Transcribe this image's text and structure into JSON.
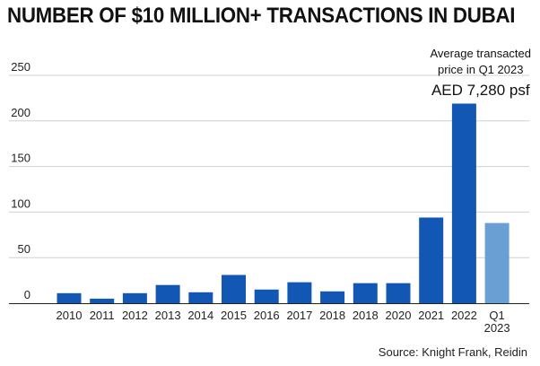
{
  "chart_data": {
    "type": "bar",
    "title": "NUMBER OF $10 MILLION+ TRANSACTIONS IN DUBAI",
    "categories": [
      "2010",
      "2011",
      "2012",
      "2013",
      "2014",
      "2015",
      "2016",
      "2017",
      "2018",
      "2018",
      "2020",
      "2021",
      "2022",
      "Q1\n2023"
    ],
    "values": [
      11,
      5,
      11,
      20,
      12,
      31,
      15,
      23,
      13,
      22,
      22,
      94,
      219,
      88
    ],
    "bar_colors": [
      "#1257b4",
      "#1257b4",
      "#1257b4",
      "#1257b4",
      "#1257b4",
      "#1257b4",
      "#1257b4",
      "#1257b4",
      "#1257b4",
      "#1257b4",
      "#1257b4",
      "#1257b4",
      "#1257b4",
      "#6a9fd4"
    ],
    "y_ticks": [
      0,
      50,
      100,
      150,
      200,
      250
    ],
    "ylim": [
      0,
      250
    ],
    "xlabel": "",
    "ylabel": "",
    "grid": "horizontal",
    "grid_color": "#d0d0d0",
    "annotation": {
      "line1": "Average transacted",
      "line2": "price in Q1 2023",
      "line3": "AED 7,280 psf"
    },
    "source": "Source: Knight Frank, Reidin"
  }
}
